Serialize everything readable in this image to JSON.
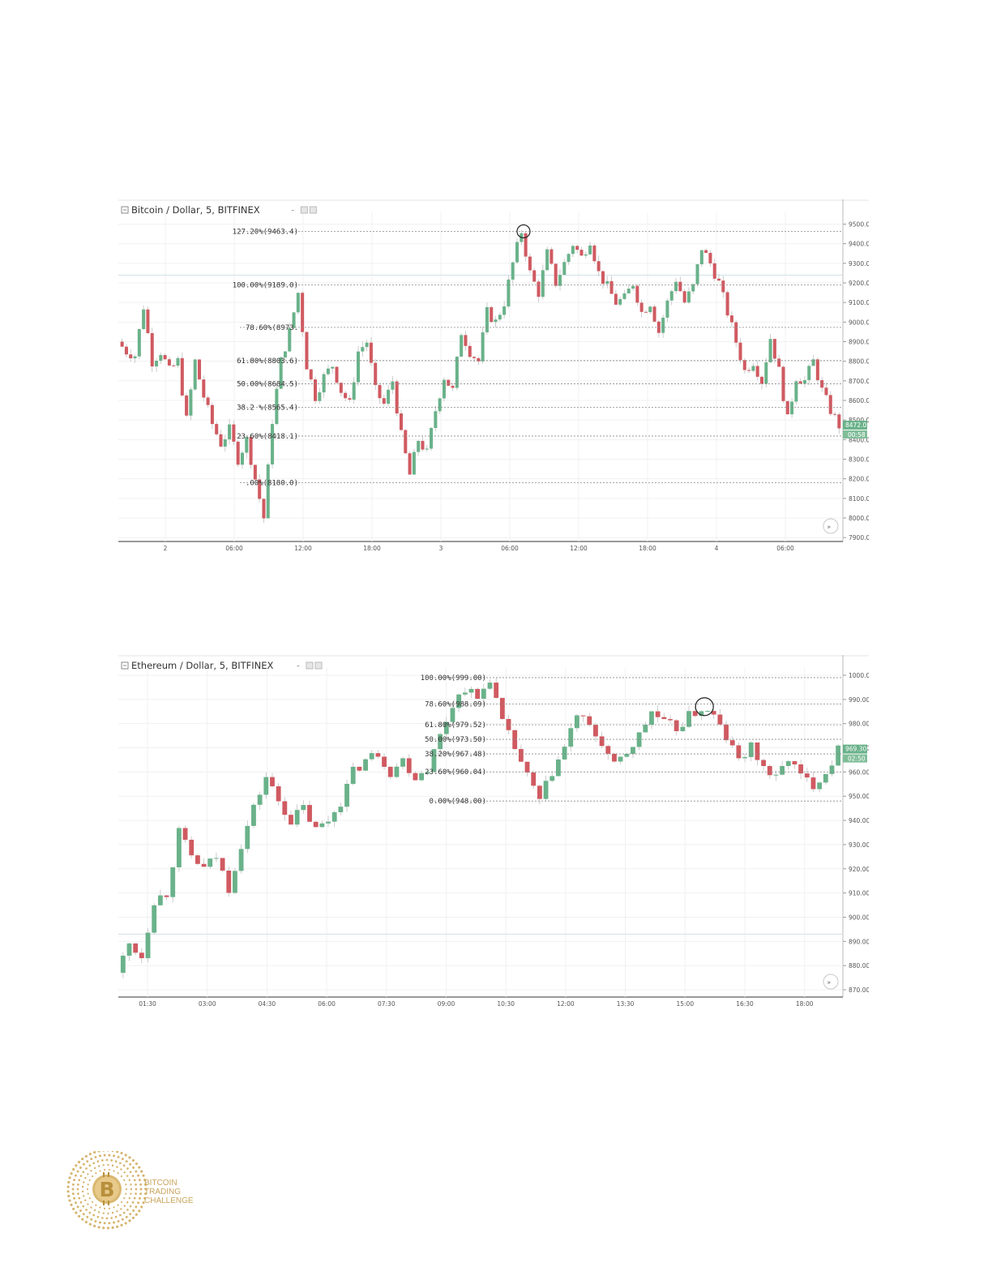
{
  "chart_data": [
    {
      "type": "candlestick",
      "title": "Bitcoin / Dollar, 5, BITFINEX",
      "ylim": [
        7880,
        9560
      ],
      "y_ticks": [
        "9500.0",
        "9400.0",
        "9300.0",
        "9200.0",
        "9100.0",
        "9000.0",
        "8900.0",
        "8800.0",
        "8700.0",
        "8600.0",
        "8500.0",
        "8400.0",
        "8300.0",
        "8200.0",
        "8100.0",
        "8000.0",
        "7900.0"
      ],
      "x_ticks": [
        "2",
        "06:00",
        "12:00",
        "18:00",
        "3",
        "06:00",
        "12:00",
        "18:00",
        "4",
        "06:00"
      ],
      "close_series": [
        {
          "x": 0,
          "y": 8900
        },
        {
          "x": 1,
          "y": 8850
        },
        {
          "x": 2,
          "y": 8830
        },
        {
          "x": 3,
          "y": 9080
        },
        {
          "x": 4,
          "y": 8800
        },
        {
          "x": 5,
          "y": 8850
        },
        {
          "x": 6,
          "y": 8750
        },
        {
          "x": 7,
          "y": 8800
        },
        {
          "x": 8,
          "y": 8500
        },
        {
          "x": 9,
          "y": 8800
        },
        {
          "x": 10,
          "y": 8620
        },
        {
          "x": 11,
          "y": 8480
        },
        {
          "x": 12,
          "y": 8380
        },
        {
          "x": 13,
          "y": 8450
        },
        {
          "x": 14,
          "y": 8300
        },
        {
          "x": 15,
          "y": 8400
        },
        {
          "x": 16,
          "y": 8200
        },
        {
          "x": 17,
          "y": 8000
        },
        {
          "x": 18,
          "y": 8500
        },
        {
          "x": 19,
          "y": 8800
        },
        {
          "x": 20,
          "y": 8950
        },
        {
          "x": 21,
          "y": 9150
        },
        {
          "x": 22,
          "y": 8780
        },
        {
          "x": 23,
          "y": 8620
        },
        {
          "x": 24,
          "y": 8720
        },
        {
          "x": 25,
          "y": 8780
        },
        {
          "x": 26,
          "y": 8650
        },
        {
          "x": 27,
          "y": 8580
        },
        {
          "x": 28,
          "y": 8850
        },
        {
          "x": 29,
          "y": 8900
        },
        {
          "x": 30,
          "y": 8650
        },
        {
          "x": 31,
          "y": 8580
        },
        {
          "x": 32,
          "y": 8700
        },
        {
          "x": 33,
          "y": 8420
        },
        {
          "x": 34,
          "y": 8220
        },
        {
          "x": 35,
          "y": 8400
        },
        {
          "x": 36,
          "y": 8330
        },
        {
          "x": 37,
          "y": 8550
        },
        {
          "x": 38,
          "y": 8720
        },
        {
          "x": 39,
          "y": 8650
        },
        {
          "x": 40,
          "y": 8950
        },
        {
          "x": 41,
          "y": 8850
        },
        {
          "x": 42,
          "y": 8800
        },
        {
          "x": 43,
          "y": 9050
        },
        {
          "x": 44,
          "y": 9000
        },
        {
          "x": 45,
          "y": 9100
        },
        {
          "x": 46,
          "y": 9300
        },
        {
          "x": 47,
          "y": 9463
        },
        {
          "x": 48,
          "y": 9250
        },
        {
          "x": 49,
          "y": 9150
        },
        {
          "x": 50,
          "y": 9350
        },
        {
          "x": 51,
          "y": 9200
        },
        {
          "x": 52,
          "y": 9300
        },
        {
          "x": 53,
          "y": 9400
        },
        {
          "x": 54,
          "y": 9330
        },
        {
          "x": 55,
          "y": 9420
        },
        {
          "x": 56,
          "y": 9250
        },
        {
          "x": 57,
          "y": 9180
        },
        {
          "x": 58,
          "y": 9100
        },
        {
          "x": 59,
          "y": 9120
        },
        {
          "x": 60,
          "y": 9200
        },
        {
          "x": 61,
          "y": 9050
        },
        {
          "x": 62,
          "y": 9100
        },
        {
          "x": 63,
          "y": 8950
        },
        {
          "x": 64,
          "y": 9100
        },
        {
          "x": 65,
          "y": 9220
        },
        {
          "x": 66,
          "y": 9100
        },
        {
          "x": 67,
          "y": 9180
        },
        {
          "x": 68,
          "y": 9380
        },
        {
          "x": 69,
          "y": 9300
        },
        {
          "x": 70,
          "y": 9200
        },
        {
          "x": 71,
          "y": 9050
        },
        {
          "x": 72,
          "y": 8900
        },
        {
          "x": 73,
          "y": 8750
        },
        {
          "x": 74,
          "y": 8800
        },
        {
          "x": 75,
          "y": 8700
        },
        {
          "x": 76,
          "y": 8920
        },
        {
          "x": 77,
          "y": 8750
        },
        {
          "x": 78,
          "y": 8500
        },
        {
          "x": 79,
          "y": 8720
        },
        {
          "x": 80,
          "y": 8700
        },
        {
          "x": 81,
          "y": 8800
        },
        {
          "x": 82,
          "y": 8650
        },
        {
          "x": 83,
          "y": 8550
        },
        {
          "x": 84,
          "y": 8472
        }
      ],
      "fib_levels": [
        {
          "label": "127.20%(9463.4)",
          "value": 9463.4
        },
        {
          "label": "100.00%(9189.0)",
          "value": 9189.0
        },
        {
          "label": "78.60%(8973.",
          "value": 8973.0
        },
        {
          "label": "61.80%(8803.6)",
          "value": 8803.6
        },
        {
          "label": "50.00%(8684.5)",
          "value": 8684.5
        },
        {
          "label": "38.2 %(8565.4)",
          "value": 8565.4
        },
        {
          "label": "23.60%(8418.1)",
          "value": 8418.1
        },
        {
          "label": " .00%(8180.0)",
          "value": 8180.0
        }
      ],
      "horizontal_line": 9240,
      "current_price": "8472.0",
      "countdown": "00:58",
      "circle_marker": {
        "x": 47,
        "y": 9463
      },
      "scroll_icon": "double-chevron-right-icon",
      "colors": {
        "up": "#6ab28a",
        "down": "#d05a61",
        "fib_line": "#888888",
        "price_tag": "#6ab28a"
      }
    },
    {
      "type": "candlestick",
      "title": "Ethereum / Dollar, 5, BITFINEX",
      "ylim": [
        867,
        1003
      ],
      "y_ticks": [
        "1000.00",
        "990.00",
        "980.00",
        "970.00",
        "960.00",
        "950.00",
        "940.00",
        "930.00",
        "920.00",
        "910.00",
        "900.00",
        "890.00",
        "880.00",
        "870.00"
      ],
      "x_ticks": [
        "01:30",
        "03:00",
        "04:30",
        "06:00",
        "07:30",
        "09:00",
        "10:30",
        "12:00",
        "13:30",
        "15:00",
        "16:30",
        "18:00"
      ],
      "close_series": [
        {
          "x": 0,
          "y": 877
        },
        {
          "x": 1,
          "y": 889
        },
        {
          "x": 2,
          "y": 884
        },
        {
          "x": 3,
          "y": 907
        },
        {
          "x": 4,
          "y": 910
        },
        {
          "x": 5,
          "y": 935
        },
        {
          "x": 6,
          "y": 925
        },
        {
          "x": 7,
          "y": 920
        },
        {
          "x": 8,
          "y": 925
        },
        {
          "x": 9,
          "y": 912
        },
        {
          "x": 10,
          "y": 930
        },
        {
          "x": 11,
          "y": 945
        },
        {
          "x": 12,
          "y": 958
        },
        {
          "x": 13,
          "y": 948
        },
        {
          "x": 14,
          "y": 940
        },
        {
          "x": 15,
          "y": 945
        },
        {
          "x": 16,
          "y": 936
        },
        {
          "x": 17,
          "y": 940
        },
        {
          "x": 18,
          "y": 948
        },
        {
          "x": 19,
          "y": 960
        },
        {
          "x": 20,
          "y": 965
        },
        {
          "x": 21,
          "y": 968
        },
        {
          "x": 22,
          "y": 960
        },
        {
          "x": 23,
          "y": 965
        },
        {
          "x": 24,
          "y": 958
        },
        {
          "x": 25,
          "y": 962
        },
        {
          "x": 26,
          "y": 975
        },
        {
          "x": 27,
          "y": 988
        },
        {
          "x": 28,
          "y": 995
        },
        {
          "x": 29,
          "y": 990
        },
        {
          "x": 30,
          "y": 999
        },
        {
          "x": 31,
          "y": 980
        },
        {
          "x": 32,
          "y": 970
        },
        {
          "x": 33,
          "y": 958
        },
        {
          "x": 34,
          "y": 948
        },
        {
          "x": 35,
          "y": 960
        },
        {
          "x": 36,
          "y": 970
        },
        {
          "x": 37,
          "y": 984
        },
        {
          "x": 38,
          "y": 978
        },
        {
          "x": 39,
          "y": 972
        },
        {
          "x": 40,
          "y": 962
        },
        {
          "x": 41,
          "y": 968
        },
        {
          "x": 42,
          "y": 975
        },
        {
          "x": 43,
          "y": 985
        },
        {
          "x": 44,
          "y": 980
        },
        {
          "x": 45,
          "y": 978
        },
        {
          "x": 46,
          "y": 983
        },
        {
          "x": 47,
          "y": 986
        },
        {
          "x": 48,
          "y": 983
        },
        {
          "x": 49,
          "y": 974
        },
        {
          "x": 50,
          "y": 965
        },
        {
          "x": 51,
          "y": 970
        },
        {
          "x": 52,
          "y": 962
        },
        {
          "x": 53,
          "y": 957
        },
        {
          "x": 54,
          "y": 966
        },
        {
          "x": 55,
          "y": 958
        },
        {
          "x": 56,
          "y": 955
        },
        {
          "x": 57,
          "y": 960
        },
        {
          "x": 58,
          "y": 969
        }
      ],
      "fib_levels": [
        {
          "label": "100.00%(999.00)",
          "value": 999.0
        },
        {
          "label": "78.60%(988.09)",
          "value": 988.09
        },
        {
          "label": "61.80%(979.52)",
          "value": 979.52
        },
        {
          "label": "50.00%(973.50)",
          "value": 973.5
        },
        {
          "label": "38.20%(967.48)",
          "value": 967.48
        },
        {
          "label": "23.60%(960.04)",
          "value": 960.04
        },
        {
          "label": "0.00%(948.00)",
          "value": 948.0
        }
      ],
      "horizontal_line": 893,
      "current_price": "969.30",
      "countdown": "02:50",
      "circle_marker": {
        "x": 47,
        "y": 987
      },
      "scroll_icon": "double-chevron-right-icon",
      "colors": {
        "up": "#6ab28a",
        "down": "#d05a61",
        "fib_line": "#888888",
        "price_tag": "#6ab28a"
      }
    }
  ],
  "logo": {
    "icon": "bitcoin-coin-icon",
    "lines": [
      "BITCOIN",
      "TRADING",
      "CHALLENGE"
    ],
    "color": "#c9a45c"
  }
}
